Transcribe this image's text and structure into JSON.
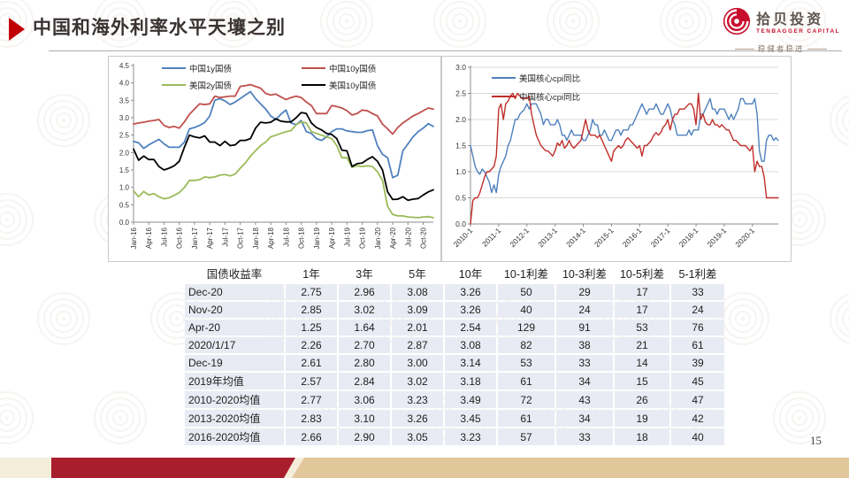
{
  "header": {
    "title": "中国和海外利率水平天壤之别"
  },
  "logo": {
    "name_cn": "拾贝投资",
    "name_en": "TENBAGGER CAPITAL",
    "slogan": "稳健者稳进"
  },
  "slide": {
    "page_number": "15"
  },
  "colors": {
    "accent_red": "#C00000",
    "bar_red": "#A91E2D",
    "bar_tan": "#E2C79B",
    "bar_cream": "#F4EDDA",
    "table_cell": "#E9EBF4"
  },
  "chart_data": [
    {
      "type": "line",
      "title": "",
      "xlabel": "",
      "ylabel": "",
      "ylim": [
        0.0,
        4.5
      ],
      "ytick_step": 0.5,
      "grid": false,
      "legend_position": "top",
      "xtick_every": 3,
      "xtick_labels": [
        "Jan-16",
        "Apr-16",
        "Jul-16",
        "Oct-16",
        "Jan-17",
        "Apr-17",
        "Jul-17",
        "Oct-17",
        "Jan-18",
        "Apr-18",
        "Jul-18",
        "Oct-18",
        "Jan-19",
        "Apr-19",
        "Jul-19",
        "Oct-19",
        "Jan-20",
        "Apr-20",
        "Jul-20",
        "Oct-20"
      ],
      "series": [
        {
          "name": "中国1y国债",
          "color": "#4F81BD",
          "values": [
            2.32,
            2.28,
            2.12,
            2.22,
            2.3,
            2.38,
            2.25,
            2.15,
            2.15,
            2.15,
            2.3,
            2.68,
            2.72,
            2.78,
            2.86,
            3.05,
            3.5,
            3.55,
            3.48,
            3.38,
            3.45,
            3.55,
            3.65,
            3.75,
            3.55,
            3.4,
            3.25,
            3.05,
            2.95,
            3.1,
            3.22,
            2.85,
            2.8,
            2.92,
            2.6,
            2.55,
            2.4,
            2.35,
            2.45,
            2.6,
            2.68,
            2.68,
            2.62,
            2.6,
            2.58,
            2.58,
            2.63,
            2.65,
            2.2,
            1.95,
            1.85,
            1.28,
            1.35,
            2.05,
            2.25,
            2.45,
            2.6,
            2.7,
            2.83,
            2.75
          ]
        },
        {
          "name": "中国10y国债",
          "color": "#C0504D",
          "values": [
            2.82,
            2.85,
            2.87,
            2.9,
            2.92,
            2.95,
            2.78,
            2.72,
            2.75,
            2.7,
            2.88,
            3.1,
            3.25,
            3.4,
            3.38,
            3.4,
            3.62,
            3.58,
            3.6,
            3.62,
            3.62,
            3.9,
            3.92,
            3.95,
            3.9,
            3.85,
            3.7,
            3.65,
            3.68,
            3.6,
            3.52,
            3.58,
            3.62,
            3.58,
            3.45,
            3.35,
            3.12,
            3.12,
            3.12,
            3.35,
            3.32,
            3.28,
            3.2,
            3.08,
            3.12,
            3.22,
            3.2,
            3.12,
            3.05,
            2.82,
            2.68,
            2.53,
            2.72,
            2.85,
            2.95,
            3.05,
            3.12,
            3.2,
            3.28,
            3.25
          ]
        },
        {
          "name": "美国2y国债",
          "color": "#9BBB59",
          "values": [
            0.9,
            0.73,
            0.88,
            0.78,
            0.82,
            0.73,
            0.67,
            0.7,
            0.77,
            0.85,
            1.0,
            1.2,
            1.2,
            1.22,
            1.3,
            1.28,
            1.3,
            1.35,
            1.37,
            1.33,
            1.38,
            1.55,
            1.7,
            1.9,
            2.05,
            2.2,
            2.3,
            2.45,
            2.5,
            2.55,
            2.6,
            2.63,
            2.8,
            2.88,
            2.85,
            2.6,
            2.55,
            2.5,
            2.45,
            2.4,
            2.2,
            1.85,
            1.85,
            1.58,
            1.62,
            1.6,
            1.62,
            1.6,
            1.45,
            1.2,
            0.45,
            0.22,
            0.18,
            0.18,
            0.15,
            0.14,
            0.13,
            0.15,
            0.16,
            0.13
          ]
        },
        {
          "name": "美国10y国债",
          "color": "#000000",
          "values": [
            2.1,
            1.78,
            1.9,
            1.8,
            1.8,
            1.6,
            1.5,
            1.55,
            1.62,
            1.75,
            2.15,
            2.5,
            2.45,
            2.42,
            2.48,
            2.3,
            2.3,
            2.2,
            2.32,
            2.2,
            2.22,
            2.35,
            2.35,
            2.4,
            2.7,
            2.87,
            2.85,
            2.87,
            2.97,
            2.9,
            2.88,
            2.88,
            3.0,
            3.15,
            3.12,
            2.85,
            2.72,
            2.65,
            2.55,
            2.52,
            2.4,
            2.07,
            2.05,
            1.6,
            1.68,
            1.7,
            1.8,
            1.88,
            1.75,
            1.5,
            0.87,
            0.65,
            0.66,
            0.73,
            0.63,
            0.66,
            0.68,
            0.78,
            0.87,
            0.93
          ]
        }
      ]
    },
    {
      "type": "line",
      "title": "",
      "xlabel": "",
      "ylabel": "",
      "ylim": [
        0.0,
        3.0
      ],
      "ytick_step": 0.5,
      "grid": true,
      "legend_position": "top-left",
      "xtick_every": 12,
      "xtick_labels": [
        "2010-1",
        "2011-1",
        "2012-1",
        "2013-1",
        "2014-1",
        "2015-1",
        "2016-1",
        "2017-1",
        "2018-1",
        "2019-1",
        "2020-1"
      ],
      "series": [
        {
          "name": "美国核心cpi同比",
          "color": "#4F81BD",
          "values": [
            1.5,
            1.3,
            1.1,
            1.0,
            0.95,
            1.05,
            1.0,
            0.9,
            0.8,
            0.6,
            0.75,
            0.6,
            0.95,
            1.1,
            1.2,
            1.3,
            1.5,
            1.6,
            1.8,
            2.0,
            2.0,
            2.1,
            2.15,
            2.2,
            2.3,
            2.2,
            2.3,
            2.3,
            2.3,
            2.2,
            2.1,
            1.9,
            2.0,
            2.0,
            1.9,
            1.9,
            1.9,
            2.0,
            1.9,
            1.7,
            1.7,
            1.6,
            1.7,
            1.8,
            1.7,
            1.7,
            1.7,
            1.7,
            1.6,
            1.6,
            1.7,
            1.8,
            2.0,
            1.9,
            1.9,
            1.7,
            1.7,
            1.8,
            1.7,
            1.6,
            1.6,
            1.7,
            1.8,
            1.8,
            1.7,
            1.8,
            1.8,
            1.8,
            1.9,
            1.9,
            2.0,
            2.1,
            2.2,
            2.3,
            2.2,
            2.1,
            2.2,
            2.2,
            2.2,
            2.3,
            2.2,
            2.1,
            2.1,
            2.2,
            2.3,
            2.2,
            2.0,
            1.9,
            1.7,
            1.7,
            1.7,
            1.7,
            1.7,
            1.8,
            1.7,
            1.8,
            1.8,
            1.8,
            2.1,
            2.1,
            2.2,
            2.3,
            2.4,
            2.2,
            2.2,
            2.1,
            2.2,
            2.2,
            2.2,
            2.1,
            2.0,
            2.1,
            2.0,
            2.1,
            2.2,
            2.4,
            2.4,
            2.3,
            2.3,
            2.3,
            2.3,
            2.4,
            2.1,
            1.4,
            1.2,
            1.2,
            1.6,
            1.7,
            1.7,
            1.6,
            1.65,
            1.6
          ]
        },
        {
          "name": "中国核心cpi同比",
          "color": "#C02E2A",
          "values": [
            0.0,
            0.45,
            0.5,
            0.5,
            0.6,
            0.75,
            0.9,
            1.0,
            1.0,
            1.05,
            1.1,
            1.3,
            2.2,
            2.3,
            2.0,
            2.3,
            2.35,
            2.45,
            2.5,
            2.4,
            2.5,
            2.45,
            2.4,
            2.4,
            2.4,
            2.45,
            2.1,
            1.9,
            1.7,
            1.6,
            1.5,
            1.45,
            1.4,
            1.4,
            1.35,
            1.3,
            1.4,
            1.55,
            1.5,
            1.6,
            1.45,
            1.5,
            1.6,
            1.5,
            1.45,
            1.5,
            1.55,
            1.6,
            1.8,
            2.0,
            1.8,
            1.7,
            1.7,
            1.7,
            1.65,
            1.7,
            1.6,
            1.5,
            1.4,
            1.3,
            1.2,
            1.4,
            1.45,
            1.5,
            1.45,
            1.5,
            1.6,
            1.65,
            1.6,
            1.55,
            1.5,
            1.45,
            1.5,
            1.3,
            1.5,
            1.5,
            1.55,
            1.6,
            1.7,
            1.75,
            1.7,
            1.75,
            1.85,
            1.9,
            2.0,
            1.8,
            2.0,
            2.1,
            2.1,
            2.2,
            2.2,
            2.2,
            2.25,
            2.3,
            2.3,
            2.2,
            1.9,
            2.5,
            2.0,
            2.1,
            1.95,
            1.9,
            1.9,
            2.0,
            1.9,
            1.9,
            1.85,
            1.9,
            1.85,
            1.8,
            1.8,
            1.7,
            1.6,
            1.6,
            1.55,
            1.5,
            1.5,
            1.5,
            1.45,
            1.4,
            1.5,
            1.0,
            1.2,
            1.1,
            1.1,
            0.9,
            0.5,
            0.5,
            0.5,
            0.5,
            0.5,
            0.5
          ]
        }
      ]
    }
  ],
  "table": {
    "columns": [
      "国债收益率",
      "1年",
      "3年",
      "5年",
      "10年",
      "10-1利差",
      "10-3利差",
      "10-5利差",
      "5-1利差"
    ],
    "rows": [
      {
        "label": "Dec-20",
        "values": [
          "2.75",
          "2.96",
          "3.08",
          "3.26",
          "50",
          "29",
          "17",
          "33"
        ]
      },
      {
        "label": "Nov-20",
        "values": [
          "2.85",
          "3.02",
          "3.09",
          "3.26",
          "40",
          "24",
          "17",
          "24"
        ]
      },
      {
        "label": "Apr-20",
        "values": [
          "1.25",
          "1.64",
          "2.01",
          "2.54",
          "129",
          "91",
          "53",
          "76"
        ]
      },
      {
        "label": "2020/1/17",
        "values": [
          "2.26",
          "2.70",
          "2.87",
          "3.08",
          "82",
          "38",
          "21",
          "61"
        ]
      },
      {
        "label": "Dec-19",
        "values": [
          "2.61",
          "2.80",
          "3.00",
          "3.14",
          "53",
          "33",
          "14",
          "39"
        ]
      },
      {
        "label": "2019年均值",
        "values": [
          "2.57",
          "2.84",
          "3.02",
          "3.18",
          "61",
          "34",
          "15",
          "45"
        ]
      },
      {
        "label": "2010-2020均值",
        "values": [
          "2.77",
          "3.06",
          "3.23",
          "3.49",
          "72",
          "43",
          "26",
          "47"
        ]
      },
      {
        "label": "2013-2020均值",
        "values": [
          "2.83",
          "3.10",
          "3.26",
          "3.45",
          "61",
          "34",
          "19",
          "42"
        ]
      },
      {
        "label": "2016-2020均值",
        "values": [
          "2.66",
          "2.90",
          "3.05",
          "3.23",
          "57",
          "33",
          "18",
          "40"
        ]
      }
    ]
  }
}
